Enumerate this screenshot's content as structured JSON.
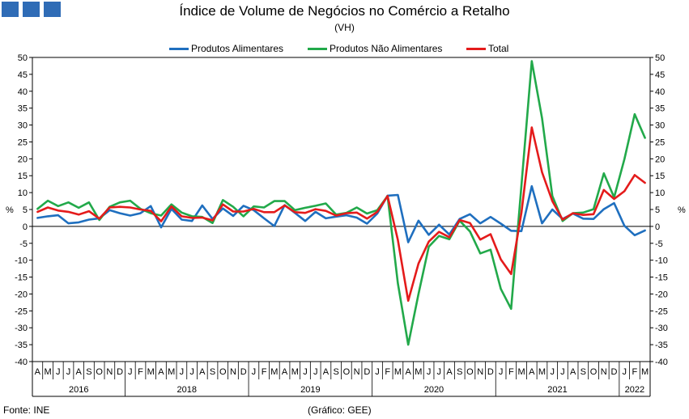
{
  "header": {
    "title": "Índice de Volume de Negócios no Comércio a Retalho",
    "subtitle": "(VH)"
  },
  "footer": {
    "source": "Fonte: INE",
    "credit": "(Gráfico: GEE)"
  },
  "colors": {
    "alimentares": "#1f6fbf",
    "nao_alimentares": "#22a94a",
    "total": "#e41b1b",
    "logo": "#2f6cb6"
  },
  "chart_data": {
    "type": "line",
    "ylabel_left": "%",
    "ylabel_right": "%",
    "ylim": [
      -40,
      50
    ],
    "ytick_step": 5,
    "grid": false,
    "legend_position": "top-center",
    "x": [
      "A",
      "M",
      "J",
      "J",
      "A",
      "S",
      "O",
      "N",
      "D",
      "J",
      "F",
      "M",
      "A",
      "M",
      "J",
      "J",
      "A",
      "S",
      "O",
      "N",
      "D",
      "J",
      "F",
      "M",
      "A",
      "M",
      "J",
      "J",
      "A",
      "S",
      "O",
      "N",
      "D",
      "J",
      "F",
      "M",
      "A",
      "M",
      "J",
      "J",
      "A",
      "S",
      "O",
      "N",
      "D",
      "J",
      "F",
      "M",
      "A",
      "M",
      "J",
      "J",
      "A",
      "S",
      "O",
      "N",
      "D",
      "J",
      "F",
      "M"
    ],
    "years": [
      {
        "label": "2016",
        "start": 0,
        "end": 9
      },
      {
        "label": "2018",
        "start": 9,
        "end": 21
      },
      {
        "label": "2019",
        "start": 21,
        "end": 33
      },
      {
        "label": "2020",
        "start": 33,
        "end": 45
      },
      {
        "label": "2021",
        "start": 45,
        "end": 57
      },
      {
        "label": "2022",
        "start": 57,
        "end": 60
      }
    ],
    "series": [
      {
        "name": "Produtos Alimentares",
        "values": [
          2.5,
          3.0,
          3.3,
          0.9,
          1.2,
          2.0,
          2.4,
          4.8,
          3.9,
          3.2,
          3.9,
          6.0,
          -0.3,
          5.2,
          2.0,
          1.6,
          6.2,
          2.2,
          5.3,
          3.1,
          6.1,
          4.8,
          2.4,
          0.1,
          6.3,
          4.0,
          1.6,
          4.3,
          2.4,
          2.9,
          3.3,
          2.6,
          0.8,
          3.8,
          9.1,
          9.3,
          -4.7,
          1.7,
          -2.5,
          0.5,
          -2.4,
          2.2,
          3.6,
          0.9,
          2.8,
          0.8,
          -1.3,
          -1.4,
          11.9,
          0.9,
          5.0,
          2.2,
          3.8,
          2.3,
          2.2,
          5.1,
          6.9,
          0.2,
          -2.6,
          -1.2
        ]
      },
      {
        "name": "Produtos Não Alimentares",
        "values": [
          5.2,
          7.6,
          6.0,
          7.1,
          5.5,
          7.1,
          1.9,
          5.8,
          7.1,
          7.6,
          5.2,
          3.9,
          3.2,
          6.5,
          4.1,
          3.0,
          2.8,
          1.0,
          7.8,
          5.8,
          3.0,
          5.9,
          5.6,
          7.5,
          7.5,
          4.8,
          5.5,
          6.1,
          6.8,
          3.5,
          4.0,
          5.6,
          3.8,
          4.8,
          9.0,
          -16.8,
          -35.0,
          -20.0,
          -6.0,
          -2.8,
          -3.8,
          1.7,
          -1.5,
          -8.0,
          -6.9,
          -18.5,
          -24.4,
          12.0,
          48.9,
          32.0,
          9.0,
          1.6,
          3.9,
          4.1,
          5.1,
          15.7,
          8.6,
          19.9,
          33.2,
          26.2
        ]
      },
      {
        "name": "Total",
        "values": [
          4.3,
          5.6,
          4.7,
          4.3,
          3.5,
          4.5,
          2.3,
          5.6,
          5.8,
          5.6,
          5.0,
          4.6,
          1.5,
          5.9,
          3.0,
          2.5,
          2.6,
          1.8,
          6.5,
          4.4,
          4.4,
          5.2,
          4.2,
          4.2,
          6.2,
          4.2,
          4.0,
          5.1,
          4.6,
          3.2,
          3.9,
          4.1,
          2.3,
          4.3,
          9.0,
          -4.0,
          -22.0,
          -11.0,
          -4.5,
          -1.6,
          -3.2,
          1.9,
          1.0,
          -3.9,
          -2.3,
          -9.8,
          -14.1,
          4.0,
          29.3,
          16.0,
          7.5,
          2.0,
          3.9,
          3.4,
          3.6,
          10.8,
          8.1,
          10.4,
          15.2,
          12.9
        ]
      }
    ]
  }
}
